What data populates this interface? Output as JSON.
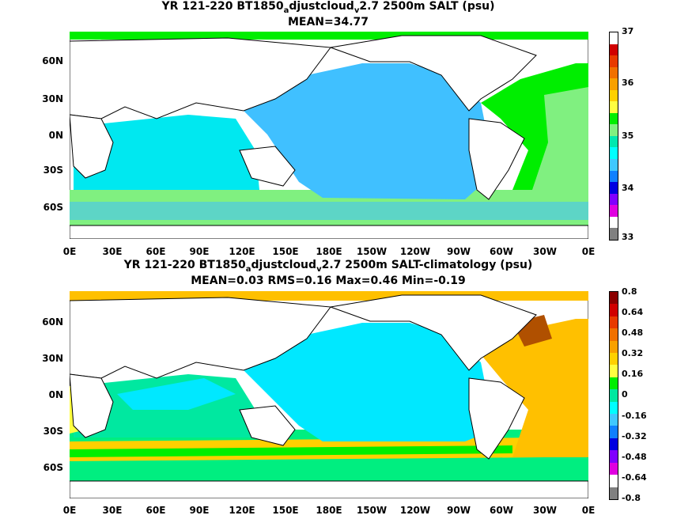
{
  "panels": [
    {
      "title_prefix": "YR 121-220 BT1850",
      "title_sub1": "a",
      "title_mid": "djustcloud",
      "title_sub2": "v",
      "title_suffix": "2.7 2500m SALT (psu)",
      "stats": "MEAN=34.77",
      "colorbar_ticks": [
        "37",
        "36",
        "35",
        "34",
        "33"
      ],
      "colorbar_colors": [
        "#ffffff",
        "#d00000",
        "#e83a00",
        "#f07000",
        "#f8a000",
        "#ffd000",
        "#ffff40",
        "#00ee00",
        "#80f080",
        "#00e8b0",
        "#00ffff",
        "#40c8ff",
        "#1080ff",
        "#0000e0",
        "#8000ff",
        "#e000e0",
        "#ffffff",
        "#808080"
      ]
    },
    {
      "title_prefix": "YR 121-220 BT1850",
      "title_sub1": "a",
      "title_mid": "djustcloud",
      "title_sub2": "v",
      "title_suffix": "2.7 2500m SALT-climatology (psu)",
      "stats": "MEAN=0.03   RMS=0.16   Max=0.46   Min=-0.19",
      "colorbar_ticks": [
        "0.8",
        "0.64",
        "0.48",
        "0.32",
        "0.16",
        "0",
        "-0.16",
        "-0.32",
        "-0.48",
        "-0.64",
        "-0.8"
      ],
      "colorbar_colors": [
        "#8b0000",
        "#d00000",
        "#e83a00",
        "#f07000",
        "#f8a000",
        "#ffd000",
        "#ffff40",
        "#00ee00",
        "#00e8a0",
        "#00ffff",
        "#40c8ff",
        "#1080ff",
        "#0000e0",
        "#8000ff",
        "#e000e0",
        "#ffffff",
        "#808080"
      ]
    }
  ],
  "axes": {
    "lat_labels": [
      "60N",
      "30N",
      "0N",
      "30S",
      "60S"
    ],
    "lon_labels": [
      "0E",
      "30E",
      "60E",
      "90E",
      "120E",
      "150E",
      "180E",
      "150W",
      "120W",
      "90W",
      "60W",
      "30W",
      "0E"
    ]
  },
  "colors": {
    "pacific_top": "#40c0ff",
    "indian_top": "#00e8f0",
    "atlantic_top": "#00ee00",
    "southern_top": "#80f080",
    "pacific_bottom": "#00e8ff",
    "atlantic_bottom": "#ffc000",
    "southern_bottom": "#00ee80",
    "land": "#ffffff"
  }
}
